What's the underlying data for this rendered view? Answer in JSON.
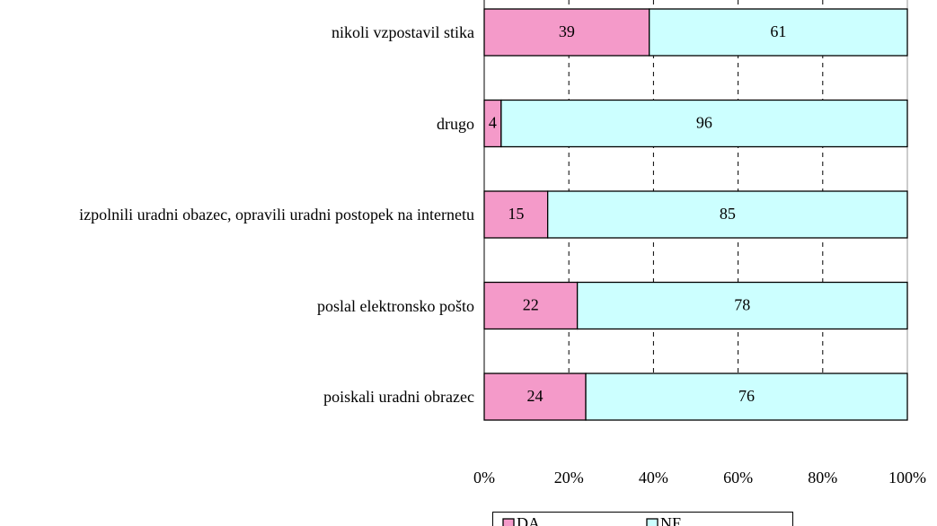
{
  "chart_data": {
    "type": "stacked_barh",
    "categories": [
      "nikoli vzpostavil stika",
      "drugo",
      "izpolnili uradni obazec, opravili uradni postopek na internetu",
      "poslal elektronsko pošto",
      "poiskali uradni obrazec"
    ],
    "series": [
      {
        "name": "DA",
        "color": "#f49ac9",
        "values": [
          39,
          4,
          15,
          22,
          24
        ]
      },
      {
        "name": "NE",
        "color": "#ccffff",
        "values": [
          61,
          96,
          85,
          78,
          76
        ]
      }
    ],
    "xlim": [
      0,
      100
    ],
    "xticks": [
      {
        "value": 0,
        "label": "0%"
      },
      {
        "value": 20,
        "label": "20%"
      },
      {
        "value": 40,
        "label": "40%"
      },
      {
        "value": 60,
        "label": "60%"
      },
      {
        "value": 80,
        "label": "80%"
      },
      {
        "value": 100,
        "label": "100%"
      }
    ],
    "grid": true,
    "legend": "bottom"
  }
}
